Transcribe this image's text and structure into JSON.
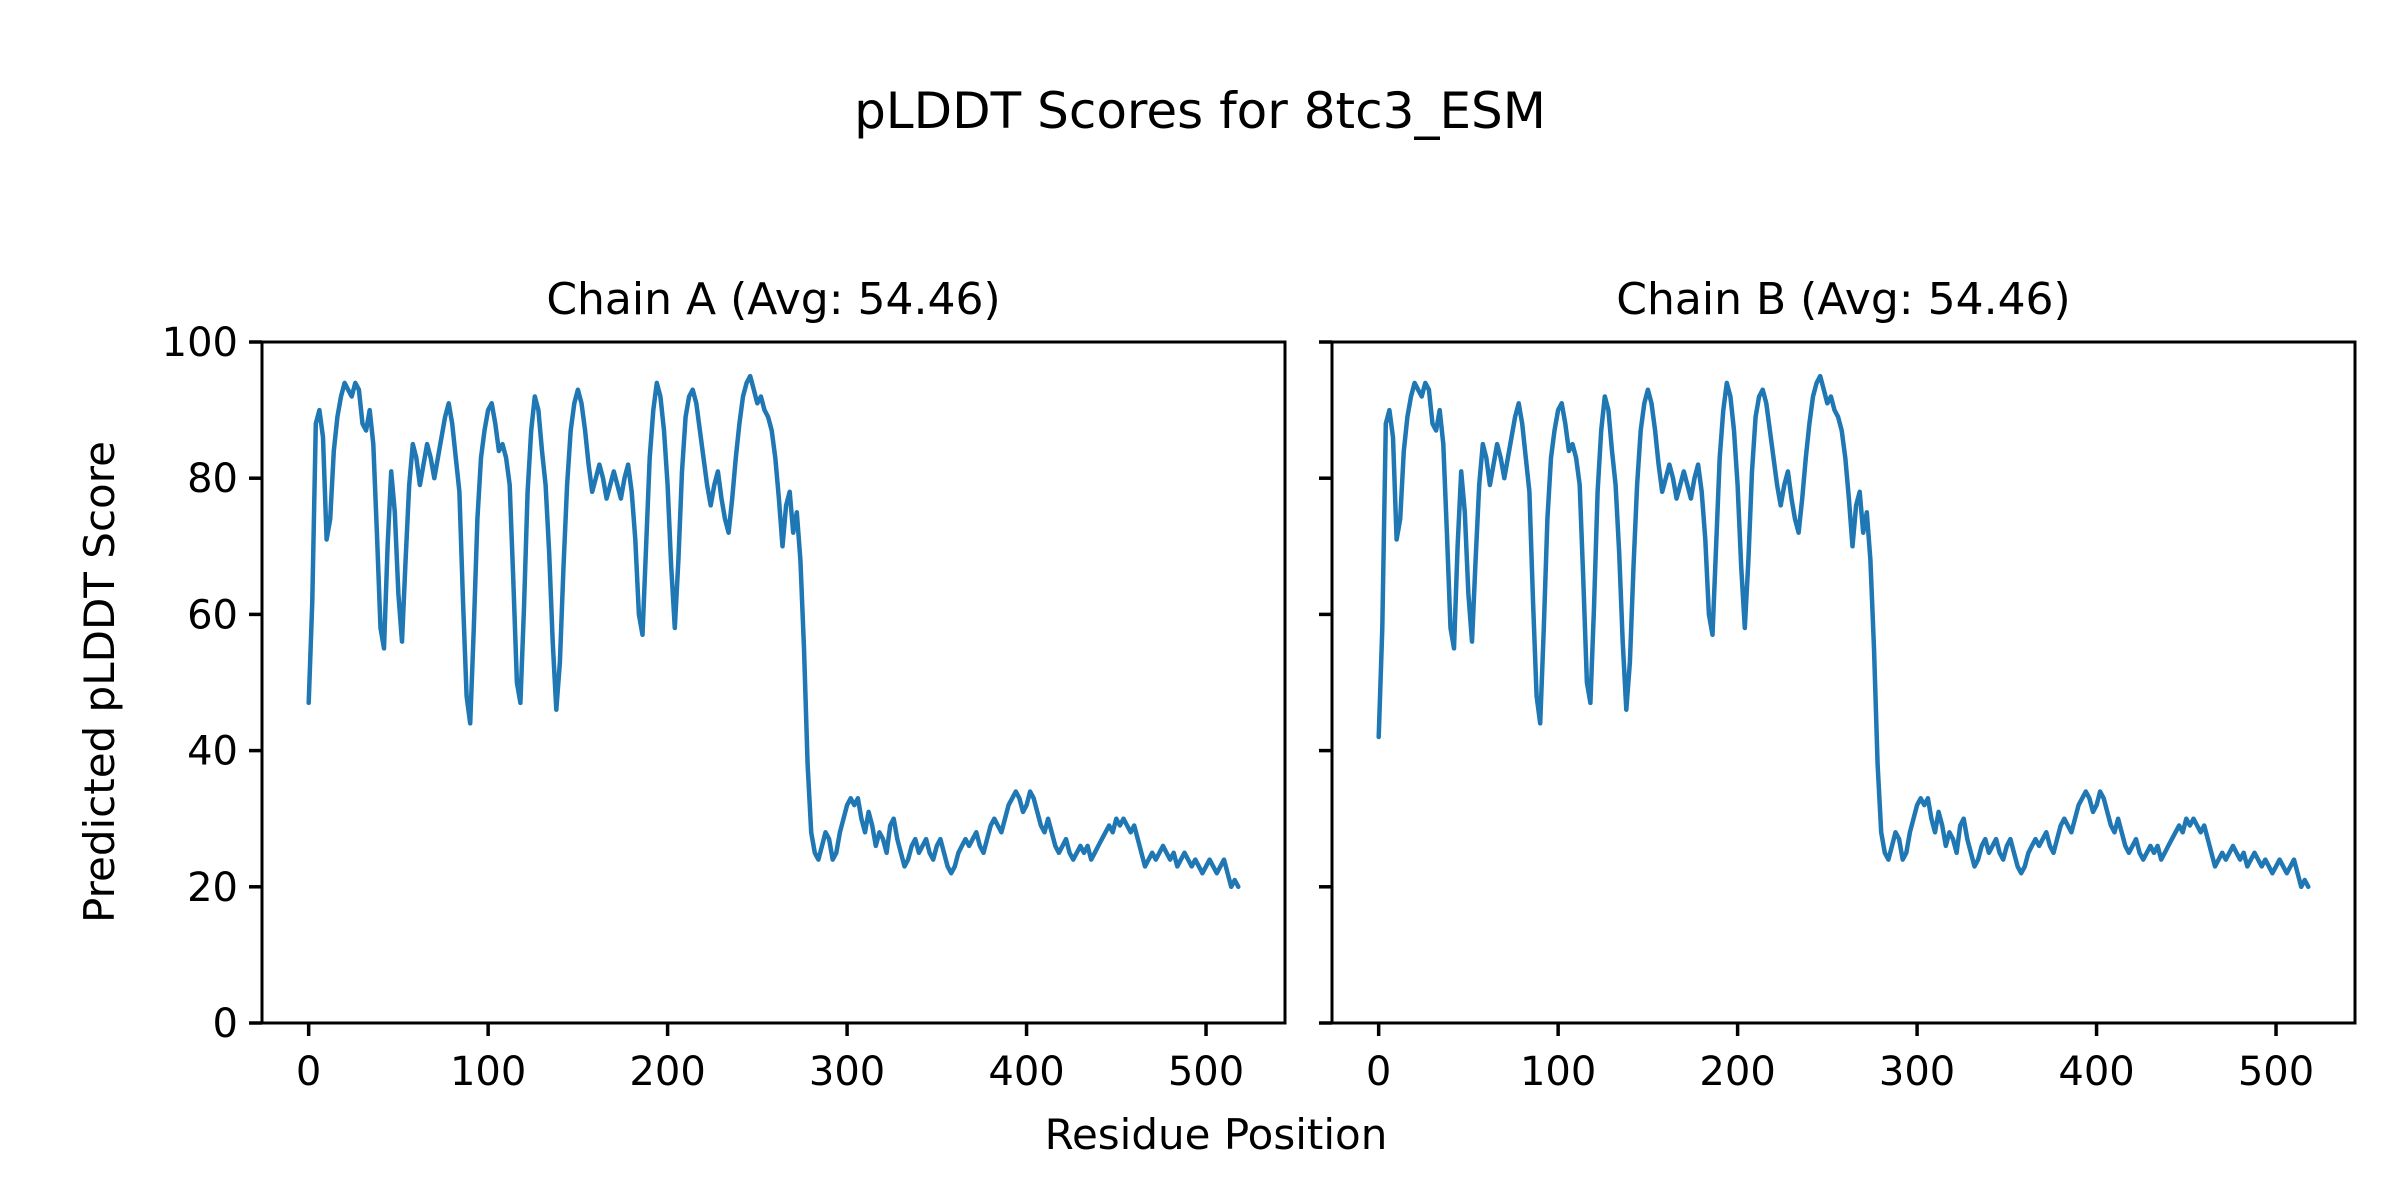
{
  "figure": {
    "suptitle": "pLDDT Scores for 8tc3_ESM",
    "xlabel": "Residue Position",
    "ylabel": "Predicted pLDDT Score",
    "background_color": "#ffffff",
    "text_color": "#000000"
  },
  "chart_data": {
    "type": "line",
    "title": "pLDDT Scores for 8tc3_ESM",
    "xlabel": "Residue Position",
    "ylabel": "Predicted pLDDT Score",
    "line_color": "#1f77b4",
    "line_width": 4.5,
    "grid": false,
    "legend": false,
    "xlim": [
      -26,
      544
    ],
    "ylim": [
      0,
      100
    ],
    "xticks": [
      0,
      100,
      200,
      300,
      400,
      500
    ],
    "yticks": [
      0,
      20,
      40,
      60,
      80,
      100
    ],
    "x_start": 0,
    "x_step": 2,
    "subplots": [
      {
        "name": "Chain A",
        "title": "Chain A (Avg: 54.46)",
        "avg": 54.46,
        "show_ytick_labels": true,
        "values": [
          47,
          62,
          88,
          90,
          86,
          71,
          74,
          84,
          89,
          92,
          94,
          93,
          92,
          94,
          93,
          88,
          87,
          90,
          85,
          72,
          58,
          55,
          70,
          81,
          75,
          63,
          56,
          68,
          79,
          85,
          83,
          79,
          82,
          85,
          83,
          80,
          83,
          86,
          89,
          91,
          88,
          83,
          78,
          62,
          48,
          44,
          58,
          74,
          83,
          87,
          90,
          91,
          88,
          84,
          85,
          83,
          79,
          65,
          50,
          47,
          61,
          78,
          87,
          92,
          90,
          84,
          79,
          69,
          56,
          46,
          53,
          67,
          79,
          87,
          91,
          93,
          91,
          87,
          82,
          78,
          80,
          82,
          80,
          77,
          79,
          81,
          79,
          77,
          80,
          82,
          78,
          71,
          60,
          57,
          70,
          83,
          90,
          94,
          92,
          87,
          79,
          67,
          58,
          68,
          81,
          89,
          92,
          93,
          91,
          87,
          83,
          79,
          76,
          79,
          81,
          77,
          74,
          72,
          77,
          83,
          88,
          92,
          94,
          95,
          93,
          91,
          92,
          90,
          89,
          87,
          83,
          77,
          70,
          76,
          78,
          72,
          75,
          68,
          55,
          38,
          28,
          25,
          24,
          26,
          28,
          27,
          24,
          25,
          28,
          30,
          32,
          33,
          32,
          33,
          30,
          28,
          31,
          29,
          26,
          28,
          27,
          25,
          29,
          30,
          27,
          25,
          23,
          24,
          26,
          27,
          25,
          26,
          27,
          25,
          24,
          26,
          27,
          25,
          23,
          22,
          23,
          25,
          26,
          27,
          26,
          27,
          28,
          26,
          25,
          27,
          29,
          30,
          29,
          28,
          30,
          32,
          33,
          34,
          33,
          31,
          32,
          34,
          33,
          31,
          29,
          28,
          30,
          28,
          26,
          25,
          26,
          27,
          25,
          24,
          25,
          26,
          25,
          26,
          24,
          25,
          26,
          27,
          28,
          29,
          28,
          30,
          29,
          30,
          29,
          28,
          29,
          27,
          25,
          23,
          24,
          25,
          24,
          25,
          26,
          25,
          24,
          25,
          23,
          24,
          25,
          24,
          23,
          24,
          23,
          22,
          23,
          24,
          23,
          22,
          23,
          24,
          22,
          20,
          21,
          20
        ]
      },
      {
        "name": "Chain B",
        "title": "Chain B (Avg: 54.46)",
        "avg": 54.46,
        "show_ytick_labels": false,
        "values": [
          42,
          58,
          88,
          90,
          86,
          71,
          74,
          84,
          89,
          92,
          94,
          93,
          92,
          94,
          93,
          88,
          87,
          90,
          85,
          72,
          58,
          55,
          70,
          81,
          75,
          63,
          56,
          68,
          79,
          85,
          83,
          79,
          82,
          85,
          83,
          80,
          83,
          86,
          89,
          91,
          88,
          83,
          78,
          62,
          48,
          44,
          58,
          74,
          83,
          87,
          90,
          91,
          88,
          84,
          85,
          83,
          79,
          65,
          50,
          47,
          61,
          78,
          87,
          92,
          90,
          84,
          79,
          69,
          56,
          46,
          53,
          67,
          79,
          87,
          91,
          93,
          91,
          87,
          82,
          78,
          80,
          82,
          80,
          77,
          79,
          81,
          79,
          77,
          80,
          82,
          78,
          71,
          60,
          57,
          70,
          83,
          90,
          94,
          92,
          87,
          79,
          67,
          58,
          68,
          81,
          89,
          92,
          93,
          91,
          87,
          83,
          79,
          76,
          79,
          81,
          77,
          74,
          72,
          77,
          83,
          88,
          92,
          94,
          95,
          93,
          91,
          92,
          90,
          89,
          87,
          83,
          77,
          70,
          76,
          78,
          72,
          75,
          68,
          55,
          38,
          28,
          25,
          24,
          26,
          28,
          27,
          24,
          25,
          28,
          30,
          32,
          33,
          32,
          33,
          30,
          28,
          31,
          29,
          26,
          28,
          27,
          25,
          29,
          30,
          27,
          25,
          23,
          24,
          26,
          27,
          25,
          26,
          27,
          25,
          24,
          26,
          27,
          25,
          23,
          22,
          23,
          25,
          26,
          27,
          26,
          27,
          28,
          26,
          25,
          27,
          29,
          30,
          29,
          28,
          30,
          32,
          33,
          34,
          33,
          31,
          32,
          34,
          33,
          31,
          29,
          28,
          30,
          28,
          26,
          25,
          26,
          27,
          25,
          24,
          25,
          26,
          25,
          26,
          24,
          25,
          26,
          27,
          28,
          29,
          28,
          30,
          29,
          30,
          29,
          28,
          29,
          27,
          25,
          23,
          24,
          25,
          24,
          25,
          26,
          25,
          24,
          25,
          23,
          24,
          25,
          24,
          23,
          24,
          23,
          22,
          23,
          24,
          23,
          22,
          23,
          24,
          22,
          20,
          21,
          20
        ]
      }
    ]
  }
}
